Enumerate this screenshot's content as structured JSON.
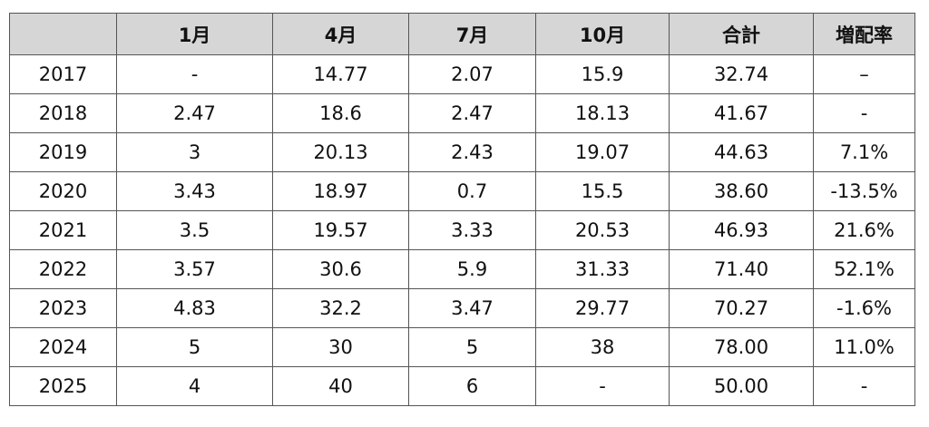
{
  "chart_data": {
    "type": "table",
    "columns": [
      "",
      "1月",
      "4月",
      "7月",
      "10月",
      "合計",
      "増配率"
    ],
    "rows": [
      [
        "2017",
        "-",
        "14.77",
        "2.07",
        "15.9",
        "32.74",
        "–"
      ],
      [
        "2018",
        "2.47",
        "18.6",
        "2.47",
        "18.13",
        "41.67",
        "-"
      ],
      [
        "2019",
        "3",
        "20.13",
        "2.43",
        "19.07",
        "44.63",
        "7.1%"
      ],
      [
        "2020",
        "3.43",
        "18.97",
        "0.7",
        "15.5",
        "38.60",
        "-13.5%"
      ],
      [
        "2021",
        "3.5",
        "19.57",
        "3.33",
        "20.53",
        "46.93",
        "21.6%"
      ],
      [
        "2022",
        "3.57",
        "30.6",
        "5.9",
        "31.33",
        "71.40",
        "52.1%"
      ],
      [
        "2023",
        "4.83",
        "32.2",
        "3.47",
        "29.77",
        "70.27",
        "-1.6%"
      ],
      [
        "2024",
        "5",
        "30",
        "5",
        "38",
        "78.00",
        "11.0%"
      ],
      [
        "2025",
        "4",
        "40",
        "6",
        "-",
        "50.00",
        "-"
      ]
    ],
    "header_color": "#d6d6d6",
    "border_color": "#555555"
  }
}
